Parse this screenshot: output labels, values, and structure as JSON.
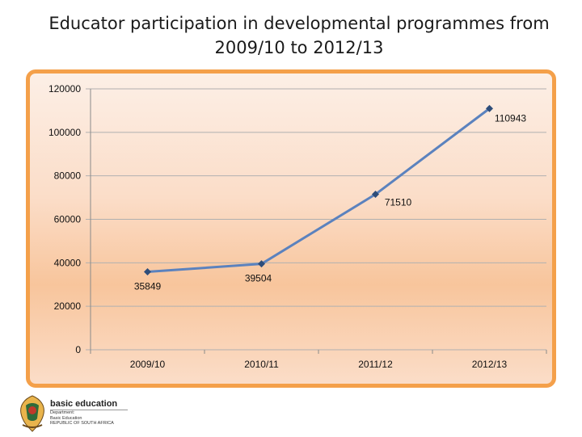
{
  "title": {
    "line1": "Educator participation in developmental programmes from",
    "line2": "2009/10 to 2012/13"
  },
  "chart_data": {
    "type": "line",
    "categories": [
      "2009/10",
      "2010/11",
      "2011/12",
      "2012/13"
    ],
    "series": [
      {
        "values": [
          35849,
          39504,
          71510,
          110943
        ]
      }
    ],
    "data_labels": [
      "35849",
      "39504",
      "71510",
      "110943"
    ],
    "ylim": [
      0,
      120000
    ],
    "yticks": [
      0,
      20000,
      40000,
      60000,
      80000,
      100000,
      120000
    ],
    "ytick_labels": [
      "0",
      "20000",
      "40000",
      "60000",
      "80000",
      "100000",
      "120000"
    ],
    "grid": true,
    "legend": "none",
    "colors": {
      "line": "#5b82be",
      "marker": "#2e4d7a",
      "frame": "#f4a04a"
    }
  },
  "logo": {
    "name": "basic education",
    "subtitle": "Department:\nBasic Education\nREPUBLIC OF SOUTH AFRICA"
  }
}
